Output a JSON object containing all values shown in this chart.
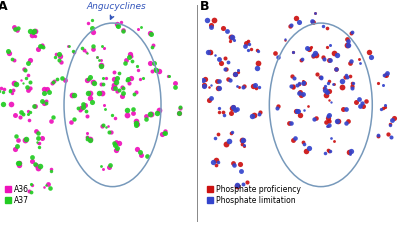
{
  "panel_a_title": "A",
  "panel_b_title": "B",
  "annotation_text": "Angucyclines",
  "annotation_color": "#3355bb",
  "color_a36": "#ee11bb",
  "color_a37": "#22cc22",
  "color_phosphate_prof": "#cc1111",
  "color_phosphate_lim": "#3344cc",
  "legend_a36": "A36",
  "legend_a37": "A37",
  "legend_prof": "Phosphate proficiency",
  "legend_lim": "Phosphate limitation",
  "ellipse_color": "#7799bb",
  "background_color": "#ffffff",
  "dot_size_min": 3,
  "dot_size_max": 18,
  "seed": 99
}
